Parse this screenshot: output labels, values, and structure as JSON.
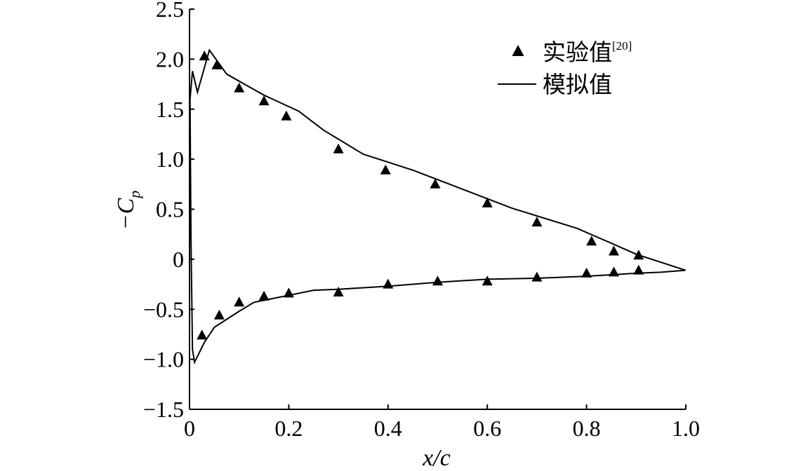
{
  "chart_data": {
    "type": "line",
    "title": "",
    "xlabel": "x/c",
    "ylabel": "−C",
    "ylabel_subscript": "p",
    "xlim": [
      0,
      1.0
    ],
    "ylim": [
      -1.5,
      2.5
    ],
    "x_ticks": [
      0,
      0.2,
      0.4,
      0.6,
      0.8,
      1.0
    ],
    "x_tick_labels": [
      "0",
      "0.2",
      "0.4",
      "0.6",
      "0.8",
      "1.0"
    ],
    "y_ticks": [
      -1.5,
      -1.0,
      -0.5,
      0,
      0.5,
      1.0,
      1.5,
      2.0,
      2.5
    ],
    "y_tick_labels": [
      "−1.5",
      "−1.0",
      "−0.5",
      "0",
      "0.5",
      "1.0",
      "1.5",
      "2.0",
      "2.5"
    ],
    "grid": false,
    "legend": {
      "position": "top-right",
      "entries": [
        {
          "label": "实验值",
          "superscript": "[20]",
          "marker": "triangle"
        },
        {
          "label": "模拟值",
          "marker": "line"
        }
      ]
    },
    "series": [
      {
        "name": "实验值",
        "kind": "scatter",
        "marker": "triangle",
        "points": [
          {
            "x": 0.03,
            "y": 2.03
          },
          {
            "x": 0.055,
            "y": 1.94
          },
          {
            "x": 0.1,
            "y": 1.71
          },
          {
            "x": 0.15,
            "y": 1.58
          },
          {
            "x": 0.195,
            "y": 1.43
          },
          {
            "x": 0.3,
            "y": 1.1
          },
          {
            "x": 0.395,
            "y": 0.89
          },
          {
            "x": 0.495,
            "y": 0.75
          },
          {
            "x": 0.6,
            "y": 0.56
          },
          {
            "x": 0.7,
            "y": 0.37
          },
          {
            "x": 0.81,
            "y": 0.18
          },
          {
            "x": 0.855,
            "y": 0.08
          },
          {
            "x": 0.905,
            "y": 0.04
          },
          {
            "x": 0.025,
            "y": -0.76
          },
          {
            "x": 0.06,
            "y": -0.56
          },
          {
            "x": 0.1,
            "y": -0.43
          },
          {
            "x": 0.15,
            "y": -0.37
          },
          {
            "x": 0.2,
            "y": -0.34
          },
          {
            "x": 0.3,
            "y": -0.33
          },
          {
            "x": 0.4,
            "y": -0.25
          },
          {
            "x": 0.5,
            "y": -0.22
          },
          {
            "x": 0.6,
            "y": -0.22
          },
          {
            "x": 0.7,
            "y": -0.18
          },
          {
            "x": 0.8,
            "y": -0.14
          },
          {
            "x": 0.855,
            "y": -0.13
          },
          {
            "x": 0.905,
            "y": -0.11
          }
        ]
      },
      {
        "name": "模拟值",
        "kind": "line",
        "points": [
          {
            "x": 0.9995,
            "y": -0.11
          },
          {
            "x": 0.95,
            "y": -0.13
          },
          {
            "x": 0.9,
            "y": -0.14
          },
          {
            "x": 0.8,
            "y": -0.17
          },
          {
            "x": 0.7,
            "y": -0.19
          },
          {
            "x": 0.6,
            "y": -0.2
          },
          {
            "x": 0.5,
            "y": -0.23
          },
          {
            "x": 0.4,
            "y": -0.27
          },
          {
            "x": 0.3,
            "y": -0.3
          },
          {
            "x": 0.25,
            "y": -0.31
          },
          {
            "x": 0.2,
            "y": -0.36
          },
          {
            "x": 0.13,
            "y": -0.43
          },
          {
            "x": 0.1,
            "y": -0.52
          },
          {
            "x": 0.05,
            "y": -0.68
          },
          {
            "x": 0.03,
            "y": -0.83
          },
          {
            "x": 0.01,
            "y": -1.03
          },
          {
            "x": 0.006,
            "y": -0.9
          },
          {
            "x": 0.003,
            "y": 0.2
          },
          {
            "x": 0.001,
            "y": 1.6
          },
          {
            "x": 0.006,
            "y": 1.88
          },
          {
            "x": 0.016,
            "y": 1.67
          },
          {
            "x": 0.04,
            "y": 2.09
          },
          {
            "x": 0.075,
            "y": 1.85
          },
          {
            "x": 0.15,
            "y": 1.64
          },
          {
            "x": 0.22,
            "y": 1.48
          },
          {
            "x": 0.27,
            "y": 1.29
          },
          {
            "x": 0.35,
            "y": 1.05
          },
          {
            "x": 0.45,
            "y": 0.89
          },
          {
            "x": 0.55,
            "y": 0.7
          },
          {
            "x": 0.65,
            "y": 0.51
          },
          {
            "x": 0.78,
            "y": 0.31
          },
          {
            "x": 0.85,
            "y": 0.16
          },
          {
            "x": 0.9,
            "y": 0.05
          },
          {
            "x": 0.9995,
            "y": -0.11
          }
        ]
      }
    ]
  }
}
